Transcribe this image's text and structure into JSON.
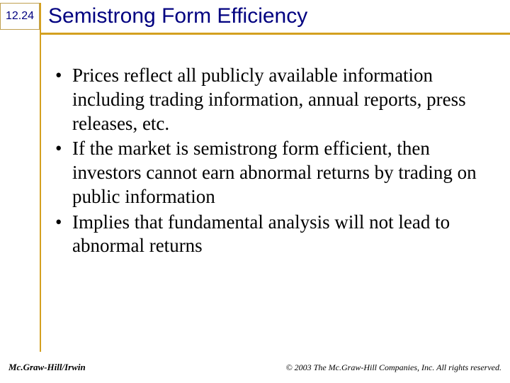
{
  "slide": {
    "number": "12.24",
    "title": "Semistrong Form Efficiency"
  },
  "bullets": [
    "Prices reflect all publicly available information including trading information, annual reports, press releases, etc.",
    "If the market is semistrong form efficient, then investors cannot earn abnormal returns by trading on public information",
    "Implies that fundamental analysis will not lead to abnormal returns"
  ],
  "footer": {
    "publisher": "Mc.Graw-Hill/Irwin",
    "copyright": "© 2003 The Mc.Graw-Hill Companies, Inc. All rights reserved."
  },
  "colors": {
    "title_color": "#000080",
    "rule_color": "#d4a020",
    "text_color": "#000000",
    "background": "#ffffff"
  },
  "typography": {
    "title_fontsize": 30,
    "body_fontsize": 27,
    "slide_number_fontsize": 16,
    "footer_fontsize": 13
  }
}
